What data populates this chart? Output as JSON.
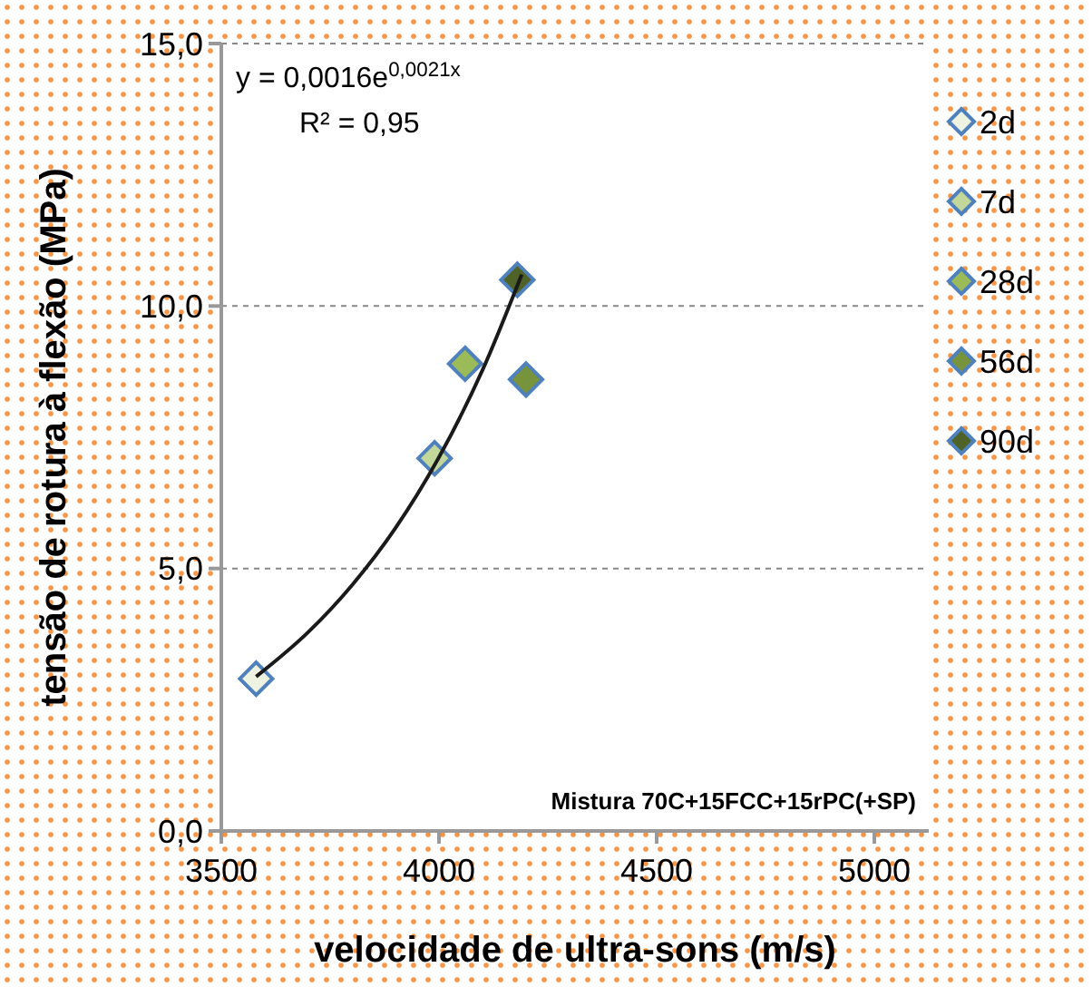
{
  "chart_data": {
    "type": "scatter",
    "xlabel": "velocidade de ultra-sons (m/s)",
    "ylabel": "tensão de rotura à flexão (MPa)",
    "xlim": [
      3500,
      5125
    ],
    "xticks": [
      3500,
      4000,
      4500,
      5000
    ],
    "ylim": [
      0,
      15
    ],
    "yticks": [
      {
        "value": 0,
        "label": "0,0"
      },
      {
        "value": 5,
        "label": "5,0"
      },
      {
        "value": 10,
        "label": "10,0"
      },
      {
        "value": 15,
        "label": "15,0"
      }
    ],
    "grid": "y",
    "legend": "right",
    "marker": "diamond",
    "annotations": [
      "y = 0,0016e$^{0,0021x}$",
      "R² = 0,95",
      "Mistura 70C+15FCC+15rPC(+SP)"
    ],
    "series": [
      {
        "name": "2d",
        "color": "#eef2e0",
        "x": [
          3580
        ],
        "values": [
          2.9
        ]
      },
      {
        "name": "7d",
        "color": "#c4d79b",
        "x": [
          3990
        ],
        "values": [
          7.1
        ]
      },
      {
        "name": "28d",
        "color": "#9bbb59",
        "x": [
          4060
        ],
        "values": [
          8.9
        ]
      },
      {
        "name": "56d",
        "color": "#77933c",
        "x": [
          4200
        ],
        "values": [
          8.6
        ]
      },
      {
        "name": "90d",
        "color": "#4f6228",
        "x": [
          4180
        ],
        "values": [
          10.5
        ]
      },
      {
        "type": "line",
        "color": "#1a1a1a",
        "marker": "none",
        "x": [
          3580,
          3700,
          3800,
          3900,
          4000,
          4100,
          4190
        ],
        "values": [
          2.94,
          3.79,
          4.68,
          5.77,
          7.12,
          8.78,
          10.6
        ]
      }
    ]
  }
}
